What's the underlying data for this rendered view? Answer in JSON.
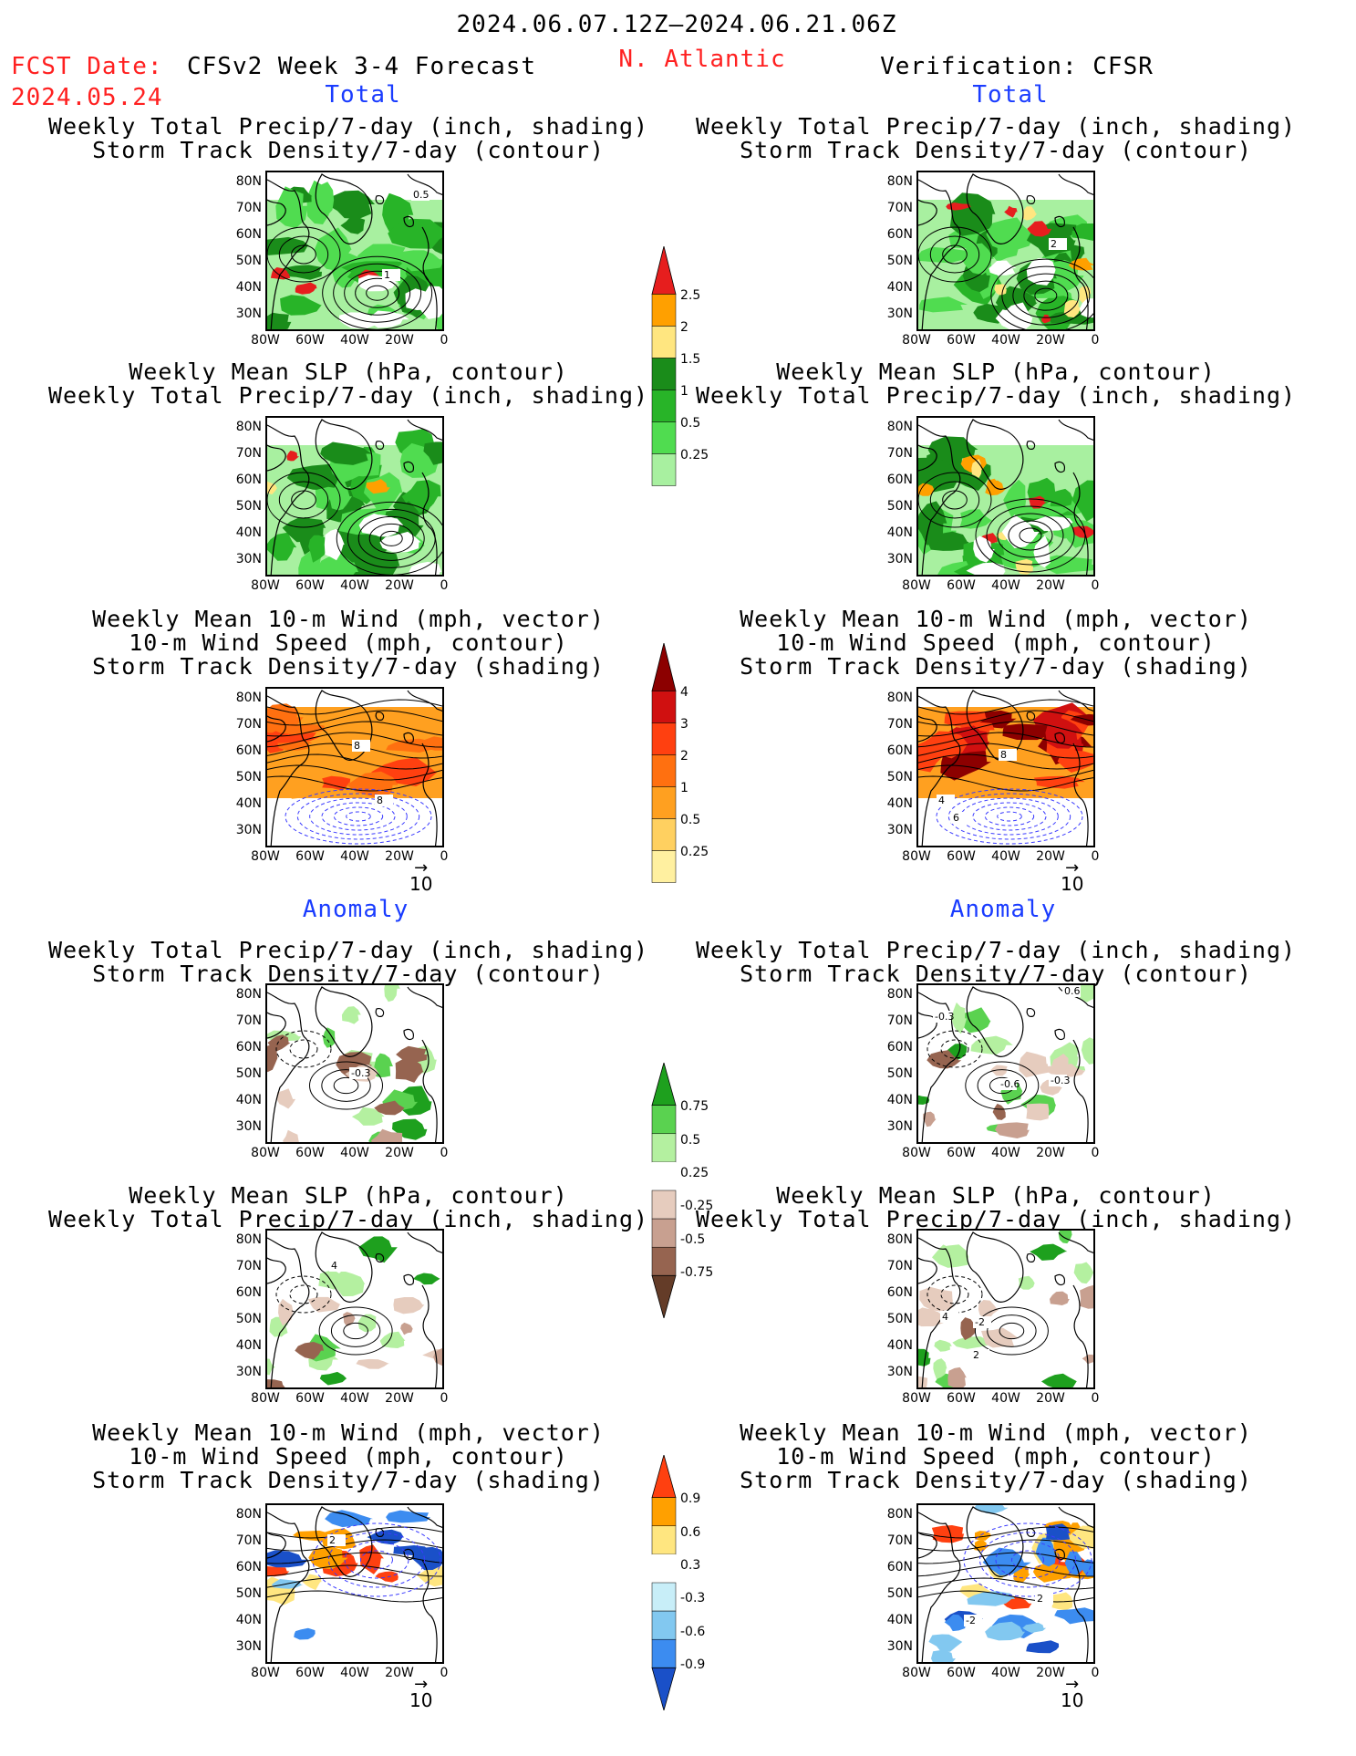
{
  "header": {
    "date_range": "2024.06.07.12Z–2024.06.21.06Z",
    "fcst_label": "FCST Date:",
    "fcst_date": "2024.05.24",
    "model": "CFSv2 Week 3-4 Forecast",
    "region": "N. Atlantic",
    "verification": "Verification: CFSR"
  },
  "sections": {
    "total": "Total",
    "anomaly": "Anomaly"
  },
  "titles": {
    "precip_std": [
      "Weekly Total Precip/7-day (inch, shading)",
      "Storm Track Density/7-day (contour)"
    ],
    "slp_precip": [
      "Weekly Mean SLP (hPa, contour)",
      "Weekly Total Precip/7-day (inch, shading)"
    ],
    "wind_std": [
      "Weekly Mean 10-m Wind (mph, vector)",
      "10-m Wind Speed (mph, contour)",
      "Storm Track Density/7-day (shading)"
    ]
  },
  "axes": {
    "lat": [
      "80N",
      "70N",
      "60N",
      "50N",
      "40N",
      "30N"
    ],
    "lon": [
      "80W",
      "60W",
      "40W",
      "20W",
      "0"
    ]
  },
  "vector_ref": "10",
  "contour_labels": {
    "p1_a": "0.5",
    "p1_b": "1",
    "p2_a": "2",
    "p5_a": "8",
    "p5_b": "8",
    "p6_a": "8",
    "p6_b": "4",
    "p6_c": "6",
    "p7_a": "-0.3",
    "p8_a": "0.6",
    "p8_b": "-0.3",
    "p8_c": "-0.6",
    "p8_d": "-0.3",
    "p9_a": "4",
    "p10_a": "4",
    "p10_b": "-2",
    "p10_c": "2",
    "p11_a": "2",
    "p12_a": "2",
    "p12_b": "-2"
  },
  "colorbars": [
    {
      "name": "precip-total",
      "colors": [
        "#a8f0a0",
        "#50dc50",
        "#28b428",
        "#1a8c1a",
        "#ffe680",
        "#ffa000",
        "#e61e1e"
      ],
      "labels": [
        "2.5",
        "2",
        "1.5",
        "1",
        "0.5",
        "0.25"
      ]
    },
    {
      "name": "storm-total",
      "colors": [
        "#fff0a0",
        "#ffd060",
        "#ffa020",
        "#ff7010",
        "#ff4010",
        "#d01010",
        "#8c0000"
      ],
      "labels": [
        "4",
        "3",
        "2",
        "1",
        "0.5",
        "0.25"
      ]
    },
    {
      "name": "precip-anom",
      "colors": [
        "#643c28",
        "#966450",
        "#c8a090",
        "#e6ccbe",
        "#ffffff",
        "#b4f0a0",
        "#5ad250",
        "#1ea01e"
      ],
      "labels": [
        "0.75",
        "0.5",
        "0.25",
        "-0.25",
        "-0.5",
        "-0.75"
      ]
    },
    {
      "name": "storm-anom",
      "colors": [
        "#1a50c8",
        "#3c8cf0",
        "#82c8f0",
        "#c8eef8",
        "#ffffff",
        "#ffe680",
        "#ffa000",
        "#ff4010"
      ],
      "labels": [
        "0.9",
        "0.6",
        "0.3",
        "-0.3",
        "-0.6",
        "-0.9"
      ]
    }
  ]
}
